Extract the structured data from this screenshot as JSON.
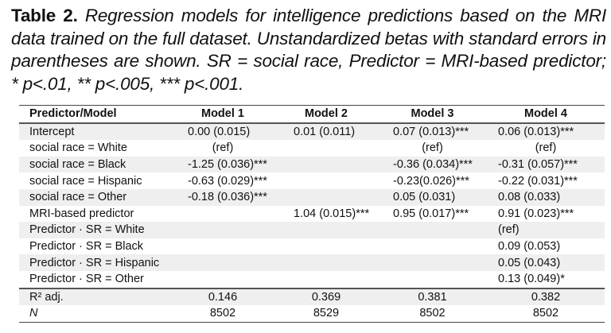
{
  "caption": {
    "label": "Table 2.",
    "text": "Regression models for intelligence predictions based on the MRI data trained on the full dataset. Unstandardized betas with standard errors in parentheses are shown. SR = social race, Predictor = MRI-based predictor; * p<.01, ** p<.005, *** p<.001."
  },
  "table": {
    "headers": [
      "Predictor/Model",
      "Model 1",
      "Model 2",
      "Model 3",
      "Model 4"
    ],
    "rows": [
      [
        "Intercept",
        "0.00 (0.015)",
        "0.01 (0.011)",
        "0.07 (0.013)***",
        "0.06 (0.013)***"
      ],
      [
        "social race = White",
        "(ref)",
        "",
        "(ref)",
        "(ref)"
      ],
      [
        "social race = Black",
        "-1.25 (0.036)***",
        "",
        "-0.36 (0.034)***",
        "-0.31 (0.057)***"
      ],
      [
        "social race = Hispanic",
        "-0.63 (0.029)***",
        "",
        "-0.23(0.026)***",
        "-0.22 (0.031)***"
      ],
      [
        "social race = Other",
        "-0.18 (0.036)***",
        "",
        "0.05 (0.031)",
        "0.08 (0.033)"
      ],
      [
        "MRI-based predictor",
        "",
        "1.04 (0.015)***",
        "0.95 (0.017)***",
        "0.91 (0.023)***"
      ],
      [
        "Predictor · SR = White",
        "",
        "",
        "",
        "(ref)"
      ],
      [
        "Predictor · SR = Black",
        "",
        "",
        "",
        "0.09 (0.053)"
      ],
      [
        "Predictor · SR = Hispanic",
        "",
        "",
        "",
        "0.05 (0.043)"
      ],
      [
        "Predictor · SR = Other",
        "",
        "",
        "",
        "0.13 (0.049)*"
      ]
    ],
    "footer": [
      [
        "R² adj.",
        "0.146",
        "0.369",
        "0.381",
        "0.382"
      ],
      [
        "N",
        "8502",
        "8529",
        "8502",
        "8502"
      ]
    ]
  }
}
